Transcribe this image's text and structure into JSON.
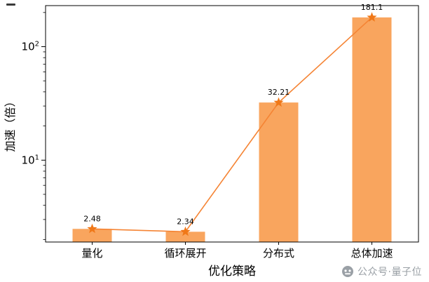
{
  "chart_data": {
    "type": "bar",
    "categories": [
      "量化",
      "循环展开",
      "分布式",
      "总体加速"
    ],
    "values": [
      2.48,
      2.34,
      32.21,
      181.1
    ],
    "value_labels": [
      "2.48",
      "2.34",
      "32.21",
      "181.1"
    ],
    "series": [
      {
        "name": "speedup-bars",
        "type": "bar",
        "values": [
          2.48,
          2.34,
          32.21,
          181.1
        ]
      },
      {
        "name": "speedup-line",
        "type": "line",
        "values": [
          2.48,
          2.34,
          32.21,
          181.1
        ]
      }
    ],
    "title": "",
    "xlabel": "优化策略",
    "ylabel": "加速（倍）",
    "yscale": "log",
    "ylim": [
      1.9,
      230
    ],
    "yticks": [
      {
        "value": 10,
        "base": "10",
        "exp": "1"
      },
      {
        "value": 100,
        "base": "10",
        "exp": "2"
      }
    ],
    "grid": false,
    "legend": "none",
    "bar_color": "#F9A55E",
    "line_color": "#F58434",
    "marker_color": "#F07818",
    "marker": "star",
    "axis_color": "#000000",
    "label_color": "#000000"
  },
  "watermark": {
    "text": "公众号·量子位",
    "icon": "qbitai-logo",
    "color": "#9aa0a6"
  }
}
